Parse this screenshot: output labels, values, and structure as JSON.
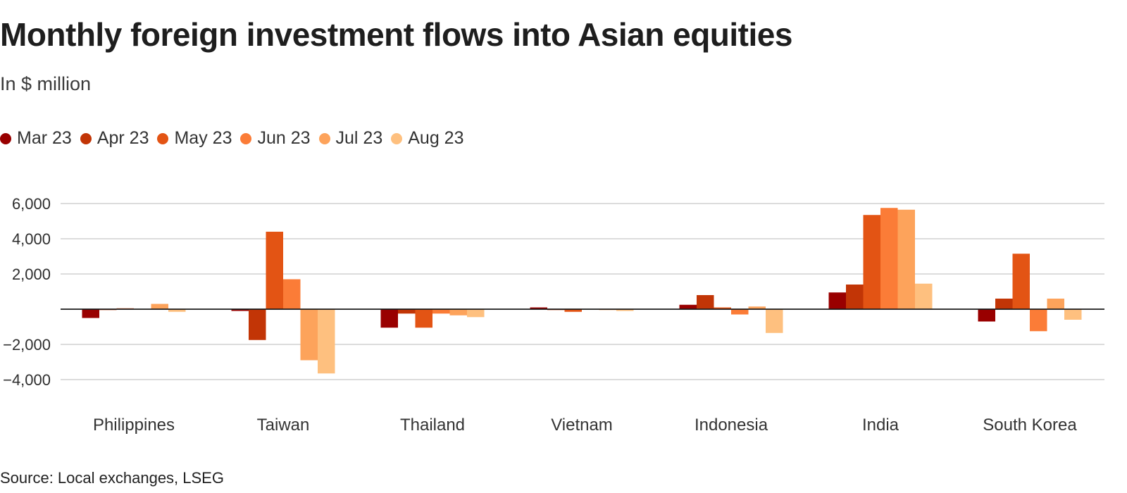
{
  "title": "Monthly foreign investment flows into Asian equities",
  "subtitle": "In $ million",
  "source": "Source: Local exchanges, LSEG",
  "chart_data": {
    "type": "bar",
    "title": "Monthly foreign investment flows into Asian equities",
    "subtitle": "In $ million",
    "xlabel": "",
    "ylabel": "",
    "ylim": [
      -4000,
      6000
    ],
    "yticks": [
      6000,
      4000,
      2000,
      0,
      -2000,
      -4000
    ],
    "ytick_labels": [
      "6,000",
      "4,000",
      "2,000",
      "",
      "−2,000",
      "−4,000"
    ],
    "grid": true,
    "legend_position": "top-left",
    "categories": [
      "Philippines",
      "Taiwan",
      "Thailand",
      "Vietnam",
      "Indonesia",
      "India",
      "South Korea"
    ],
    "series": [
      {
        "name": "Mar 23",
        "color": "#990000",
        "values": [
          -500,
          -100,
          -1050,
          100,
          250,
          950,
          -700
        ]
      },
      {
        "name": "Apr 23",
        "color": "#c23506",
        "values": [
          -50,
          -1750,
          -250,
          -50,
          800,
          1400,
          600
        ]
      },
      {
        "name": "May 23",
        "color": "#e35414",
        "values": [
          50,
          4400,
          -1050,
          -150,
          100,
          5350,
          3150
        ]
      },
      {
        "name": "Jun 23",
        "color": "#fb7c37",
        "values": [
          0,
          1700,
          -250,
          0,
          -300,
          5750,
          -1250
        ]
      },
      {
        "name": "Jul 23",
        "color": "#fda35b",
        "values": [
          300,
          -2900,
          -350,
          -50,
          150,
          5650,
          600
        ]
      },
      {
        "name": "Aug 23",
        "color": "#fec07f",
        "values": [
          -150,
          -3650,
          -450,
          -100,
          -1350,
          1450,
          -600
        ]
      }
    ]
  }
}
